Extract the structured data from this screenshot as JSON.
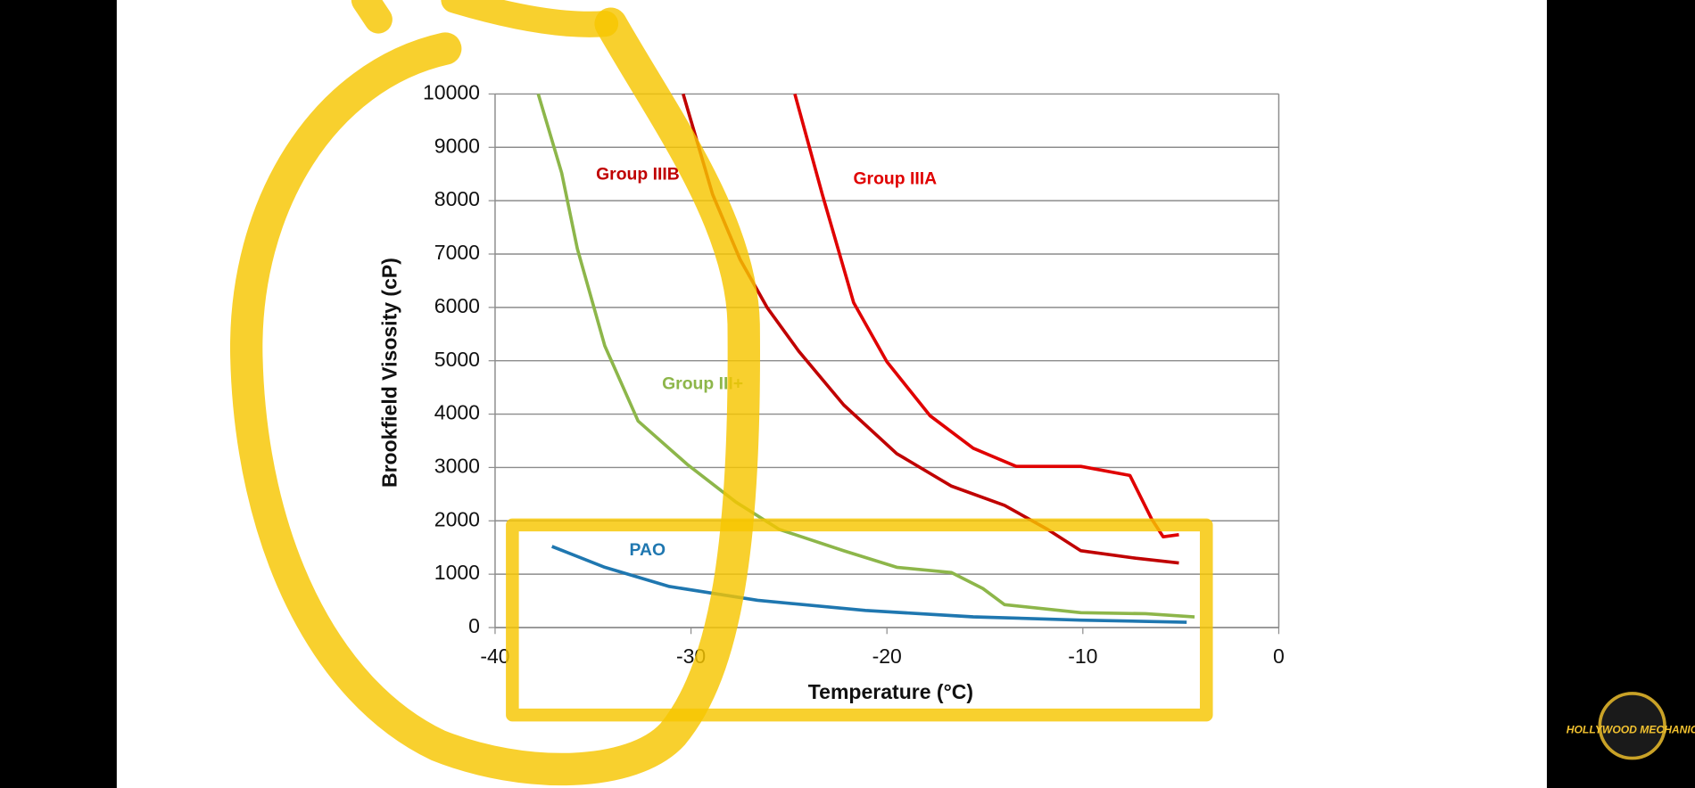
{
  "chart_data": {
    "type": "line",
    "x_label": "Temperature (°C)",
    "y_label": "Brookfield Visosity (cP)",
    "xlim": [
      -40,
      0
    ],
    "xticks": [
      -40,
      -30,
      -20,
      -10,
      0
    ],
    "ylim": [
      0,
      10000
    ],
    "yticks": [
      0,
      1000,
      2000,
      3000,
      4000,
      5000,
      6000,
      7000,
      8000,
      9000,
      10000
    ],
    "grid": true,
    "series": [
      {
        "name": "Group IIIB",
        "color": "#c00000",
        "x": [
          -30.4,
          -28.9,
          -27.5,
          -26.1,
          -24.5,
          -22.2,
          -19.5,
          -16.7,
          -14,
          -11.8,
          -10.1,
          -7.3,
          -5.1
        ],
        "values": [
          10000,
          8120,
          6900,
          5990,
          5180,
          4170,
          3260,
          2650,
          2290,
          1840,
          1440,
          1300,
          1210
        ]
      },
      {
        "name": "Group IIIA",
        "color": "#e00000",
        "x": [
          -24.7,
          -23.3,
          -21.7,
          -20,
          -17.8,
          -15.6,
          -13.4,
          -10.1,
          -7.6,
          -6.5,
          -5.9,
          -5.1
        ],
        "values": [
          10000,
          8120,
          6090,
          4980,
          3970,
          3360,
          3020,
          3020,
          2850,
          2040,
          1700,
          1740
        ]
      },
      {
        "name": "Group III+",
        "color": "#8db64a",
        "x": [
          -37.8,
          -36.6,
          -35.8,
          -34.4,
          -32.7,
          -30.2,
          -27.7,
          -25.5,
          -22.2,
          -19.5,
          -16.7,
          -15.1,
          -14,
          -10.1,
          -6.8,
          -4.3
        ],
        "values": [
          10000,
          8520,
          7100,
          5280,
          3870,
          3060,
          2350,
          1840,
          1440,
          1130,
          1030,
          730,
          430,
          280,
          260,
          200
        ]
      },
      {
        "name": "PAO",
        "color": "#1f77b0",
        "x": [
          -37.1,
          -34.4,
          -31.1,
          -26.6,
          -21.1,
          -15.6,
          -10.1,
          -4.7
        ],
        "values": [
          1520,
          1130,
          770,
          510,
          320,
          200,
          140,
          100
        ]
      }
    ]
  },
  "watermark": "HOLLYWOOD MECHANIC"
}
